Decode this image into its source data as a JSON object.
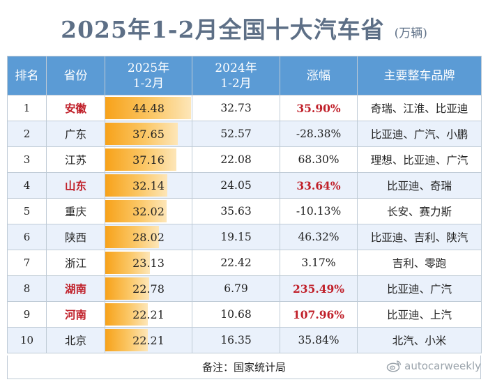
{
  "title": "2025年1-2月全国十大汽车省",
  "unit": "(万辆)",
  "headers": [
    "排名",
    "省份",
    "2025年\n1-2月",
    "2024年\n1-2月",
    "涨幅",
    "主要整车品牌"
  ],
  "highlight_color": "#c0202a",
  "header_color": "#5b9bd5",
  "bar_color": "#f7a21a",
  "bar_max": 45,
  "rows": [
    {
      "rank": "1",
      "province": "安徽",
      "v2025": "44.48",
      "v2025_num": 44.48,
      "v2024": "32.73",
      "growth": "35.90%",
      "brands": "奇瑞、江淮、比亚迪",
      "highlight": true
    },
    {
      "rank": "2",
      "province": "广东",
      "v2025": "37.65",
      "v2025_num": 37.65,
      "v2024": "52.57",
      "growth": "-28.38%",
      "brands": "比亚迪、广汽、小鹏",
      "highlight": false
    },
    {
      "rank": "3",
      "province": "江苏",
      "v2025": "37.16",
      "v2025_num": 37.16,
      "v2024": "22.08",
      "growth": "68.30%",
      "brands": "理想、比亚迪、广汽",
      "highlight": false
    },
    {
      "rank": "4",
      "province": "山东",
      "v2025": "32.14",
      "v2025_num": 32.14,
      "v2024": "24.05",
      "growth": "33.64%",
      "brands": "比亚迪、奇瑞",
      "highlight": true
    },
    {
      "rank": "5",
      "province": "重庆",
      "v2025": "32.02",
      "v2025_num": 32.02,
      "v2024": "35.63",
      "growth": "-10.13%",
      "brands": "长安、赛力斯",
      "highlight": false
    },
    {
      "rank": "6",
      "province": "陕西",
      "v2025": "28.02",
      "v2025_num": 28.02,
      "v2024": "19.15",
      "growth": "46.32%",
      "brands": "比亚迪、吉利、陕汽",
      "highlight": false
    },
    {
      "rank": "7",
      "province": "浙江",
      "v2025": "23.13",
      "v2025_num": 23.13,
      "v2024": "22.42",
      "growth": "3.17%",
      "brands": "吉利、零跑",
      "highlight": false
    },
    {
      "rank": "8",
      "province": "湖南",
      "v2025": "22.78",
      "v2025_num": 22.78,
      "v2024": "6.79",
      "growth": "235.49%",
      "brands": "比亚迪、广汽",
      "highlight": true
    },
    {
      "rank": "9",
      "province": "河南",
      "v2025": "22.21",
      "v2025_num": 22.21,
      "v2024": "10.68",
      "growth": "107.96%",
      "brands": "比亚迪、上汽",
      "highlight": true
    },
    {
      "rank": "10",
      "province": "北京",
      "v2025": "22.21",
      "v2025_num": 22.21,
      "v2024": "16.35",
      "growth": "35.84%",
      "brands": "北汽、小米",
      "highlight": false
    }
  ],
  "footer": "备注：国家统计局",
  "watermark": "autocarweekly",
  "watermark_icon": "weibo-icon"
}
